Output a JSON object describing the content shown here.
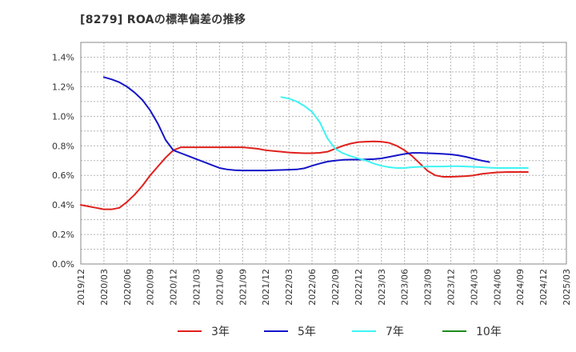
{
  "chart_data": {
    "type": "line",
    "title": "[8279]  ROAの標準偏差の推移",
    "xlabel": "",
    "ylabel": "",
    "x_ticks": [
      "2019/12",
      "2020/03",
      "2020/06",
      "2020/09",
      "2020/12",
      "2021/03",
      "2021/06",
      "2021/09",
      "2021/12",
      "2022/03",
      "2022/06",
      "2022/09",
      "2022/12",
      "2023/03",
      "2023/06",
      "2023/09",
      "2023/12",
      "2024/03",
      "2024/06",
      "2024/09",
      "2024/12",
      "2025/03"
    ],
    "y_ticks": [
      "0.0%",
      "0.2%",
      "0.4%",
      "0.6%",
      "0.8%",
      "1.0%",
      "1.2%",
      "1.4%"
    ],
    "ylim": [
      0,
      1.5
    ],
    "grid": true,
    "legend_position": "bottom",
    "series": [
      {
        "name": "3年",
        "color": "#e0201c",
        "start_index": 0,
        "values": [
          0.4,
          0.39,
          0.38,
          0.37,
          0.37,
          0.38,
          0.42,
          0.47,
          0.53,
          0.6,
          0.66,
          0.72,
          0.77,
          0.79,
          0.79,
          0.79,
          0.79,
          0.79,
          0.79,
          0.79,
          0.79,
          0.79,
          0.785,
          0.78,
          0.77,
          0.765,
          0.76,
          0.755,
          0.752,
          0.75,
          0.75,
          0.753,
          0.76,
          0.78,
          0.8,
          0.815,
          0.825,
          0.828,
          0.83,
          0.828,
          0.82,
          0.8,
          0.77,
          0.73,
          0.68,
          0.63,
          0.6,
          0.59,
          0.59,
          0.592,
          0.595,
          0.6,
          0.61,
          0.615,
          0.62,
          0.622,
          0.623,
          0.623,
          0.623
        ]
      },
      {
        "name": "5年",
        "color": "#1414c8",
        "start_index": 3,
        "values": [
          1.265,
          1.25,
          1.23,
          1.2,
          1.16,
          1.11,
          1.04,
          0.95,
          0.84,
          0.77,
          0.75,
          0.73,
          0.71,
          0.69,
          0.67,
          0.65,
          0.64,
          0.635,
          0.633,
          0.633,
          0.633,
          0.633,
          0.635,
          0.636,
          0.638,
          0.64,
          0.648,
          0.665,
          0.68,
          0.693,
          0.7,
          0.705,
          0.707,
          0.707,
          0.708,
          0.71,
          0.715,
          0.725,
          0.735,
          0.745,
          0.752,
          0.752,
          0.75,
          0.748,
          0.745,
          0.742,
          0.735,
          0.725,
          0.712,
          0.7,
          0.69
        ]
      },
      {
        "name": "7年",
        "color": "#3ff3f3",
        "start_index": 26,
        "values": [
          1.13,
          1.12,
          1.1,
          1.07,
          1.03,
          0.96,
          0.85,
          0.78,
          0.75,
          0.73,
          0.715,
          0.7,
          0.68,
          0.665,
          0.655,
          0.65,
          0.65,
          0.655,
          0.658,
          0.66,
          0.66,
          0.66,
          0.662,
          0.662,
          0.66,
          0.658,
          0.655,
          0.652,
          0.65,
          0.65,
          0.65,
          0.65,
          0.65
        ]
      },
      {
        "name": "10年",
        "color": "#1b8c1b",
        "start_index": 0,
        "values": []
      }
    ]
  }
}
